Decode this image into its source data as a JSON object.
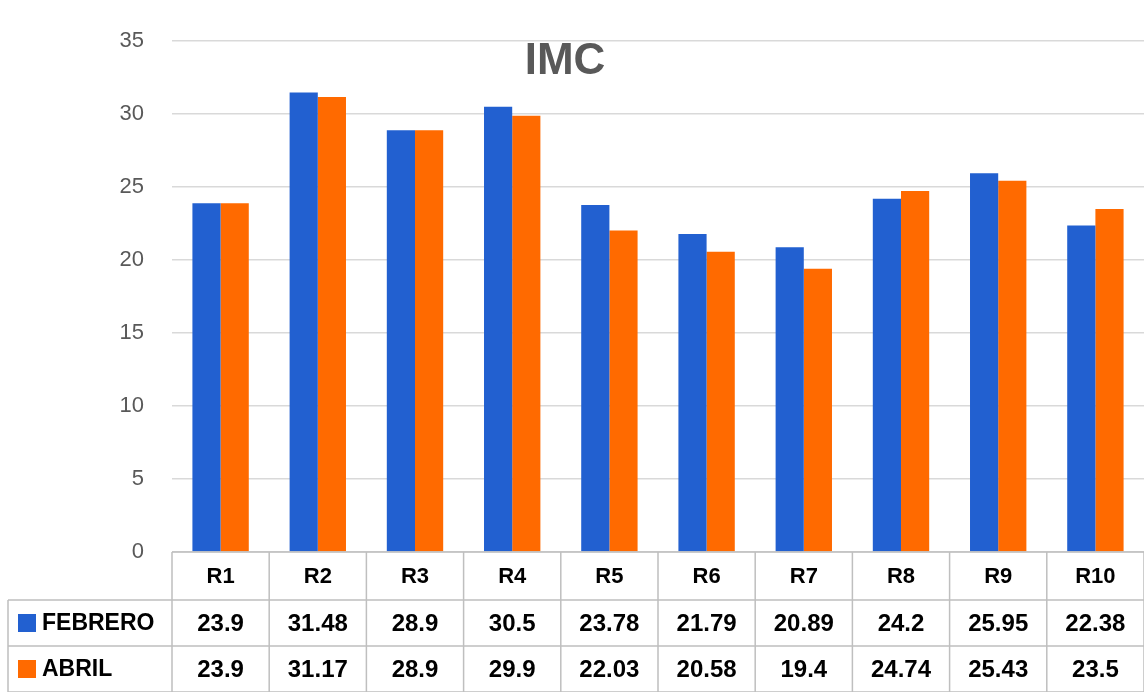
{
  "chart_data": {
    "type": "bar",
    "title": "IMC",
    "categories": [
      "R1",
      "R2",
      "R3",
      "R4",
      "R5",
      "R6",
      "R7",
      "R8",
      "R9",
      "R10"
    ],
    "series": [
      {
        "name": "FEBRERO",
        "color": "#2260d0",
        "values": [
          23.9,
          31.48,
          28.9,
          30.5,
          23.78,
          21.79,
          20.89,
          24.2,
          25.95,
          22.38
        ]
      },
      {
        "name": "ABRIL",
        "color": "#ff6a00",
        "values": [
          23.9,
          31.17,
          28.9,
          29.9,
          22.03,
          20.58,
          19.4,
          24.74,
          25.43,
          23.5
        ]
      }
    ],
    "ylim": [
      0,
      35
    ],
    "yticks": [
      0,
      5,
      10,
      15,
      20,
      25,
      30,
      35
    ],
    "grid": "y",
    "legend": "bottom",
    "data_labels": true
  }
}
